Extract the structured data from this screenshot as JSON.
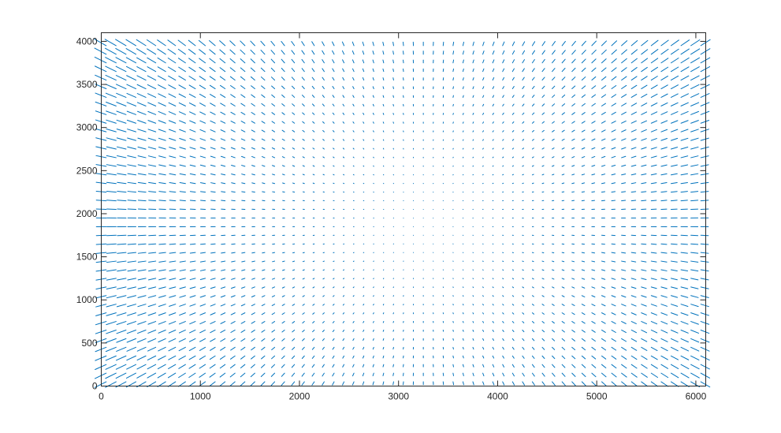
{
  "chart_data": {
    "type": "quiver",
    "title": "",
    "xlabel": "",
    "ylabel": "",
    "xlim": [
      0,
      6100
    ],
    "ylim": [
      0,
      4100
    ],
    "xticks": [
      0,
      1000,
      2000,
      3000,
      4000,
      5000,
      6000
    ],
    "yticks": [
      0,
      500,
      1000,
      1500,
      2000,
      2500,
      3000,
      3500,
      4000
    ],
    "xtick_labels": [
      "0",
      "1000",
      "2000",
      "3000",
      "4000",
      "5000",
      "6000"
    ],
    "ytick_labels": [
      "0",
      "500",
      "1000",
      "1500",
      "2000",
      "2500",
      "3000",
      "3500",
      "4000"
    ],
    "grid": false,
    "color": "#0072BD",
    "field": {
      "x_start": 50,
      "x_step": 100,
      "x_count": 61,
      "y_start": 50,
      "y_step": 100,
      "y_count": 40,
      "center": [
        3250,
        1900
      ],
      "direction": "radial-outward",
      "max_vector_length": 150
    }
  }
}
